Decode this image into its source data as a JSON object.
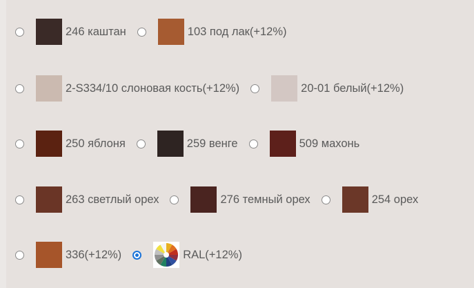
{
  "rows": [
    [
      {
        "label": "246 каштан",
        "color": "#3a2a27",
        "selected": false
      },
      {
        "label": "103 под лак(+12%)",
        "color": "#a65b31",
        "selected": false
      }
    ],
    [
      {
        "label": "2-S334/10 слоновая кость(+12%)",
        "color": "#cbbab0",
        "selected": false
      },
      {
        "label": "20-01 белый(+12%)",
        "color": "#d3c7c3",
        "selected": false
      }
    ],
    [
      {
        "label": "250 яблоня",
        "color": "#5b2211",
        "selected": false
      },
      {
        "label": "259 венге",
        "color": "#2e2422",
        "selected": false
      },
      {
        "label": "509 махонь",
        "color": "#5d201b",
        "selected": false
      }
    ],
    [
      {
        "label": "263 светлый орех",
        "color": "#6a3526",
        "selected": false
      },
      {
        "label": "276 темный орех",
        "color": "#4a2420",
        "selected": false
      },
      {
        "label": "254 орех",
        "color": "#6b3728",
        "selected": false
      }
    ],
    [
      {
        "label": "336(+12%)",
        "color": "#a6552a",
        "selected": false
      },
      {
        "label": "RAL(+12%)",
        "color": "ral-fan-icon",
        "selected": true
      }
    ]
  ]
}
